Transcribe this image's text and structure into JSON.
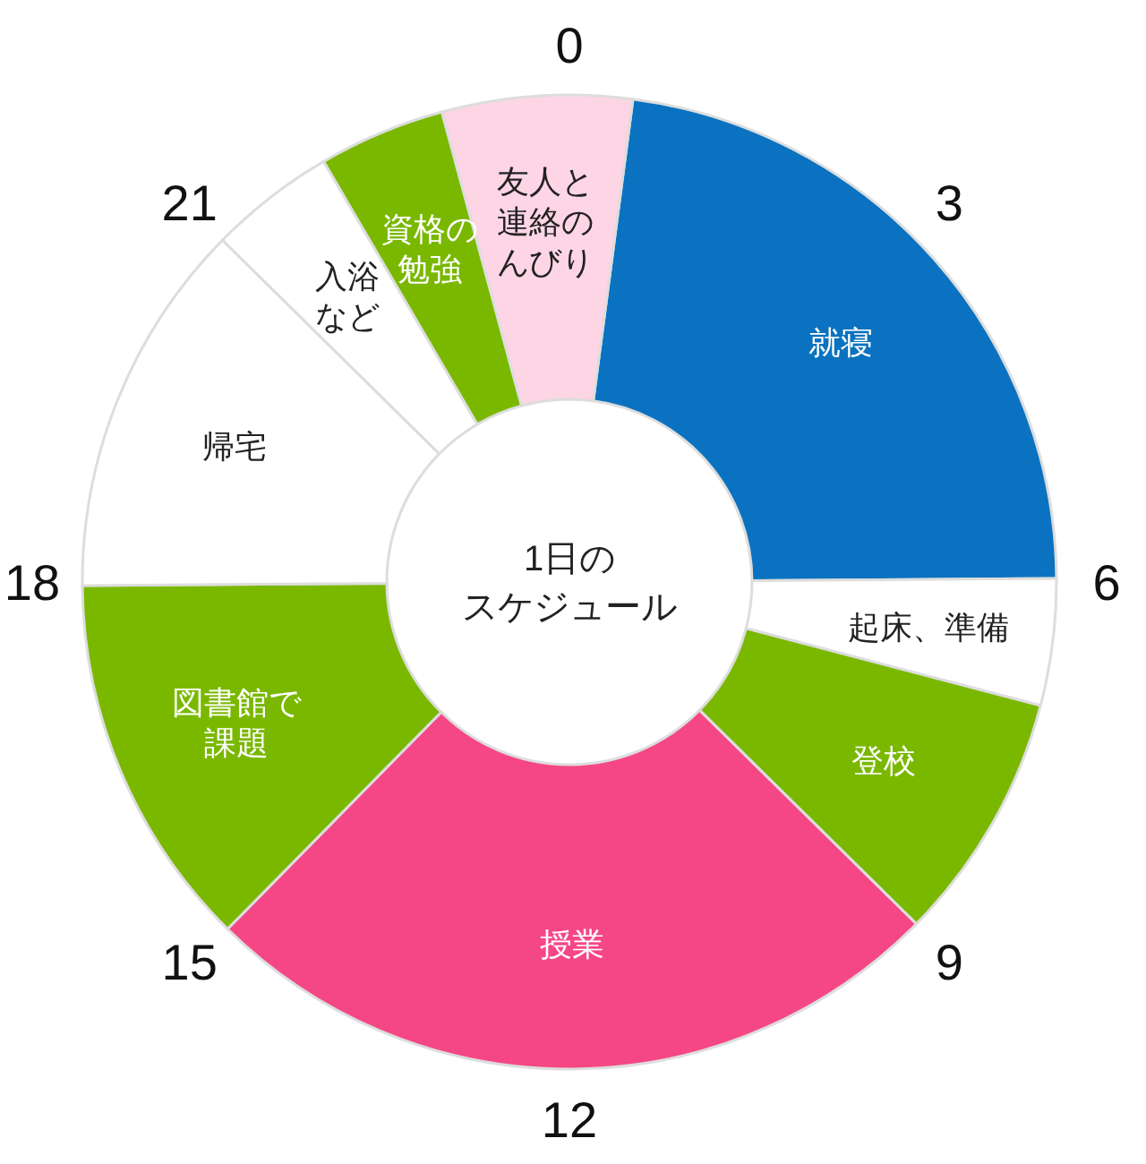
{
  "chart_data": {
    "type": "donut",
    "title": "1日のスケジュール",
    "categories": [
      "就寝",
      "起床、準備",
      "登校",
      "授業",
      "図書館で課題",
      "帰宅",
      "入浴など",
      "資格の勉強",
      "友人と連絡のんびり"
    ],
    "values": [
      22.8,
      4.2,
      8.3,
      25,
      12.5,
      12.5,
      4.2,
      4.2,
      6.3
    ],
    "colors": [
      "#0a72c0",
      "#ffffff",
      "#7ab800",
      "#f54785",
      "#7ab800",
      "#ffffff",
      "#ffffff",
      "#7ab800",
      "#fdd5e5"
    ],
    "annotations": [
      "0",
      "3",
      "6",
      "9",
      "12",
      "15",
      "18",
      "21"
    ]
  }
}
